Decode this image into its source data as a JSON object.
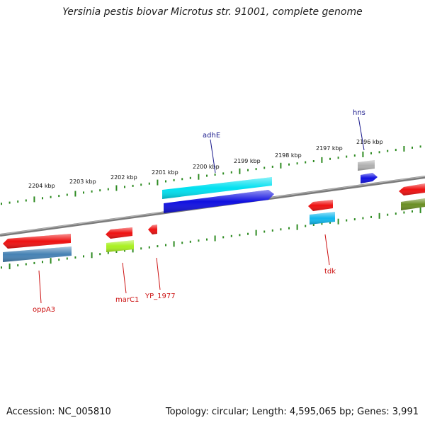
{
  "title": "Yersinia pestis biovar Microtus str. 91001, complete genome",
  "footer": {
    "accession": "Accession: NC_005810",
    "summary": "Topology: circular; Length: 4,595,065 bp; Genes: 3,991"
  },
  "scale": {
    "labels": [
      "2204 kbp",
      "2203 kbp",
      "2202 kbp",
      "2201 kbp",
      "2200 kbp",
      "2199 kbp",
      "2198 kbp",
      "2197 kbp",
      "2196 kbp"
    ]
  },
  "colors": {
    "backbone": "#808080",
    "ticks": "#2e8b22",
    "labels_above": "#1a1a8c",
    "labels_below": "#cc1111",
    "red": "#ee1111",
    "steelblue": "#4682b4",
    "cyan": "#11d8e8",
    "blue": "#1111dd",
    "yellowgreen": "#a8f020",
    "deepskyblue": "#10b8ee",
    "silver": "#aaaaaa",
    "olive": "#6b8e23"
  },
  "gene_labels": {
    "adhE": "adhE",
    "hns": "hns",
    "oppA3": "oppA3",
    "marC1": "marC1",
    "YP_1977": "YP_1977",
    "tdk": "tdk"
  }
}
